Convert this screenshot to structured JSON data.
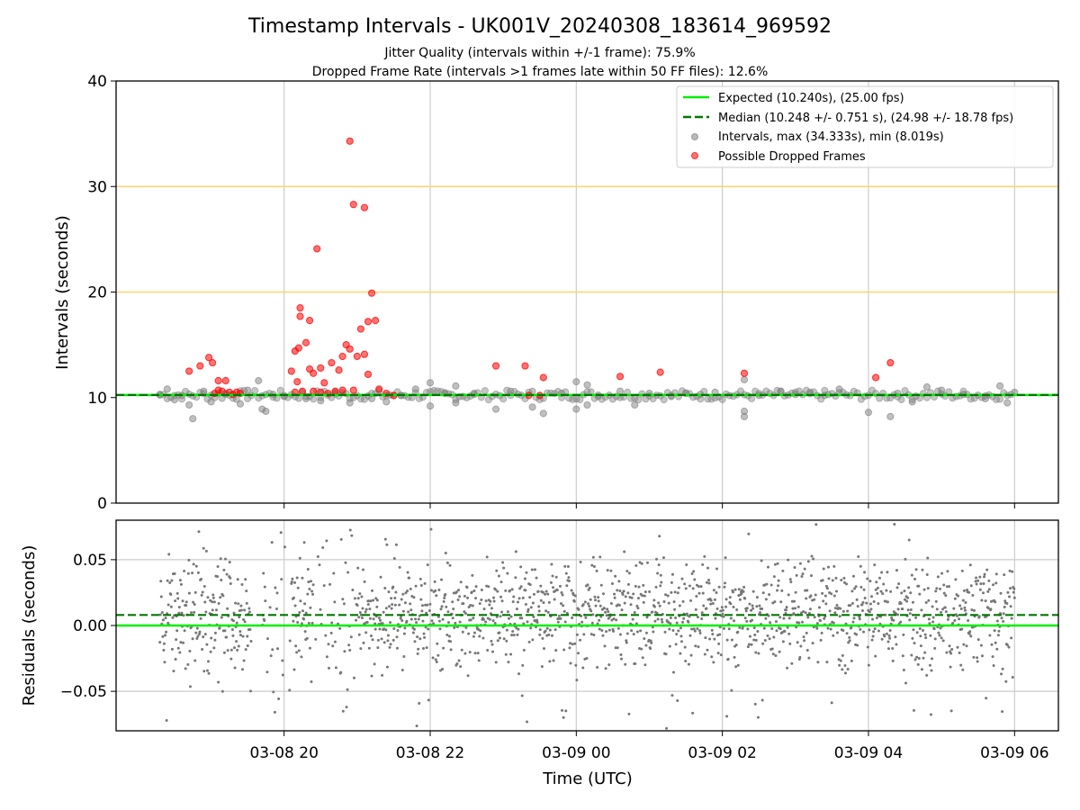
{
  "title": "Timestamp Intervals - UK001V_20240308_183614_969592",
  "subtitle_1": "Jitter Quality (intervals within +/-1 frame): 75.9%",
  "subtitle_2": "Dropped Frame Rate (intervals >1 frames late within 50 FF files): 12.6%",
  "colors": {
    "expected": "#00ee00",
    "median": "#007700",
    "intervals": "#808080",
    "dropped": "#ff0000",
    "threshold": "#ffd36a",
    "grid": "#cccccc"
  },
  "chart_data": [
    {
      "type": "scatter",
      "ylabel": "Intervals (seconds)",
      "ylim": [
        0,
        40
      ],
      "yticks": [
        "0",
        "10",
        "20",
        "30",
        "40"
      ],
      "xlim_hours": [
        17.7,
        30.6
      ],
      "grid": "x",
      "horizontal_lines": [
        20,
        30
      ],
      "legend_position": "upper right",
      "legend": [
        "Expected (10.240s), (25.00 fps)",
        "Median (10.248 +/- 0.751 s), (24.98 +/- 18.78 fps)",
        "Intervals, max (34.333s), min (8.019s)",
        "Possible Dropped Frames"
      ],
      "series": [
        {
          "name": "Expected (10.240s), (25.00 fps)",
          "kind": "hline",
          "value": 10.24
        },
        {
          "name": "Median (10.248 +/- 0.751 s), (24.98 +/- 18.78 fps)",
          "kind": "hline",
          "value": 10.248
        },
        {
          "name": "Intervals, max (34.333s), min (8.019s)",
          "kind": "scatter",
          "range": [
            18.3,
            30.0
          ],
          "points": [
            [
              18.3,
              10.3
            ],
            [
              18.4,
              10.8
            ],
            [
              18.5,
              9.8
            ],
            [
              18.6,
              10.2
            ],
            [
              18.7,
              9.3
            ],
            [
              18.75,
              8.0
            ],
            [
              18.9,
              10.6
            ],
            [
              19.0,
              9.6
            ],
            [
              19.2,
              10.4
            ],
            [
              19.4,
              9.4
            ],
            [
              19.5,
              10.7
            ],
            [
              19.65,
              11.6
            ],
            [
              19.7,
              8.9
            ],
            [
              19.75,
              8.7
            ],
            [
              19.85,
              10.3
            ],
            [
              20.0,
              10.1
            ],
            [
              20.3,
              9.9
            ],
            [
              20.5,
              9.7
            ],
            [
              20.7,
              10.5
            ],
            [
              20.9,
              9.5
            ],
            [
              21.2,
              9.9
            ],
            [
              21.4,
              9.6
            ],
            [
              21.6,
              10.2
            ],
            [
              21.8,
              10.8
            ],
            [
              22.0,
              9.2
            ],
            [
              22.0,
              11.4
            ],
            [
              22.2,
              10.4
            ],
            [
              22.35,
              11.1
            ],
            [
              22.35,
              9.5
            ],
            [
              22.6,
              10.3
            ],
            [
              22.9,
              8.9
            ],
            [
              23.1,
              10.6
            ],
            [
              23.4,
              9.1
            ],
            [
              23.55,
              8.5
            ],
            [
              23.8,
              10.4
            ],
            [
              24.0,
              8.9
            ],
            [
              24.0,
              11.5
            ],
            [
              24.15,
              9.3
            ],
            [
              24.15,
              11.2
            ],
            [
              24.3,
              10.1
            ],
            [
              24.6,
              10.6
            ],
            [
              24.8,
              9.3
            ],
            [
              25.0,
              10.4
            ],
            [
              25.3,
              10.1
            ],
            [
              25.5,
              10.4
            ],
            [
              25.7,
              10.3
            ],
            [
              25.9,
              10.5
            ],
            [
              26.3,
              8.2
            ],
            [
              26.3,
              11.7
            ],
            [
              26.3,
              8.7
            ],
            [
              26.5,
              10.2
            ],
            [
              26.8,
              10.6
            ],
            [
              27.0,
              10.3
            ],
            [
              27.2,
              10.5
            ],
            [
              27.4,
              10.2
            ],
            [
              27.6,
              10.8
            ],
            [
              28.0,
              8.6
            ],
            [
              28.3,
              8.2
            ],
            [
              28.4,
              10.4
            ],
            [
              28.6,
              9.6
            ],
            [
              28.8,
              11.0
            ],
            [
              29.0,
              10.7
            ],
            [
              29.3,
              10.3
            ],
            [
              29.6,
              9.9
            ],
            [
              29.8,
              11.1
            ],
            [
              29.9,
              9.5
            ],
            [
              30.0,
              10.5
            ]
          ]
        },
        {
          "name": "Possible Dropped Frames",
          "kind": "scatter",
          "points": [
            [
              18.7,
              12.5
            ],
            [
              18.85,
              13.0
            ],
            [
              18.97,
              13.8
            ],
            [
              19.02,
              13.3
            ],
            [
              19.05,
              10.4
            ],
            [
              19.1,
              10.7
            ],
            [
              19.15,
              10.6
            ],
            [
              19.2,
              11.6
            ],
            [
              19.1,
              11.6
            ],
            [
              19.25,
              10.5
            ],
            [
              19.3,
              10.3
            ],
            [
              19.35,
              10.5
            ],
            [
              19.4,
              10.4
            ],
            [
              20.1,
              12.5
            ],
            [
              20.15,
              10.5
            ],
            [
              20.15,
              14.4
            ],
            [
              20.18,
              11.5
            ],
            [
              20.2,
              14.7
            ],
            [
              20.22,
              17.7
            ],
            [
              20.22,
              18.5
            ],
            [
              20.25,
              10.6
            ],
            [
              20.3,
              15.2
            ],
            [
              20.35,
              12.7
            ],
            [
              20.35,
              17.3
            ],
            [
              20.4,
              12.3
            ],
            [
              20.4,
              10.6
            ],
            [
              20.45,
              24.1
            ],
            [
              20.5,
              12.8
            ],
            [
              20.5,
              10.5
            ],
            [
              20.55,
              11.4
            ],
            [
              20.6,
              10.4
            ],
            [
              20.65,
              13.3
            ],
            [
              20.7,
              10.6
            ],
            [
              20.75,
              12.6
            ],
            [
              20.8,
              10.7
            ],
            [
              20.8,
              13.9
            ],
            [
              20.9,
              34.3
            ],
            [
              20.85,
              15.0
            ],
            [
              20.9,
              14.6
            ],
            [
              20.95,
              28.3
            ],
            [
              20.95,
              10.7
            ],
            [
              21.0,
              13.9
            ],
            [
              21.05,
              16.5
            ],
            [
              21.1,
              28.0
            ],
            [
              21.1,
              14.1
            ],
            [
              21.15,
              12.2
            ],
            [
              21.15,
              17.2
            ],
            [
              21.2,
              19.9
            ],
            [
              21.25,
              17.3
            ],
            [
              21.3,
              10.8
            ],
            [
              21.4,
              10.4
            ],
            [
              21.5,
              10.2
            ],
            [
              22.9,
              13.0
            ],
            [
              23.3,
              13.0
            ],
            [
              23.35,
              10.2
            ],
            [
              23.5,
              10.2
            ],
            [
              23.55,
              11.9
            ],
            [
              24.6,
              12.0
            ],
            [
              25.15,
              12.4
            ],
            [
              26.3,
              12.3
            ],
            [
              28.1,
              11.9
            ],
            [
              28.3,
              13.3
            ]
          ]
        }
      ]
    },
    {
      "type": "scatter",
      "xlabel": "Time (UTC)",
      "ylabel": "Residuals (seconds)",
      "ylim": [
        -0.08,
        0.08
      ],
      "yticks": [
        "−0.05",
        "0.00",
        "0.05"
      ],
      "xticks": [
        "03-08 20",
        "03-08 22",
        "03-09 00",
        "03-09 02",
        "03-09 04",
        "03-09 06"
      ],
      "xtick_hours": [
        20,
        22,
        24,
        26,
        28,
        30
      ],
      "grid": "both",
      "series": [
        {
          "name": "",
          "kind": "hline",
          "value": 0.0
        },
        {
          "name": "",
          "kind": "hline",
          "value": 0.008
        },
        {
          "name": "",
          "kind": "scatter",
          "range": [
            18.3,
            30.0
          ],
          "y_band": [
            -0.05,
            0.06
          ]
        }
      ]
    }
  ]
}
